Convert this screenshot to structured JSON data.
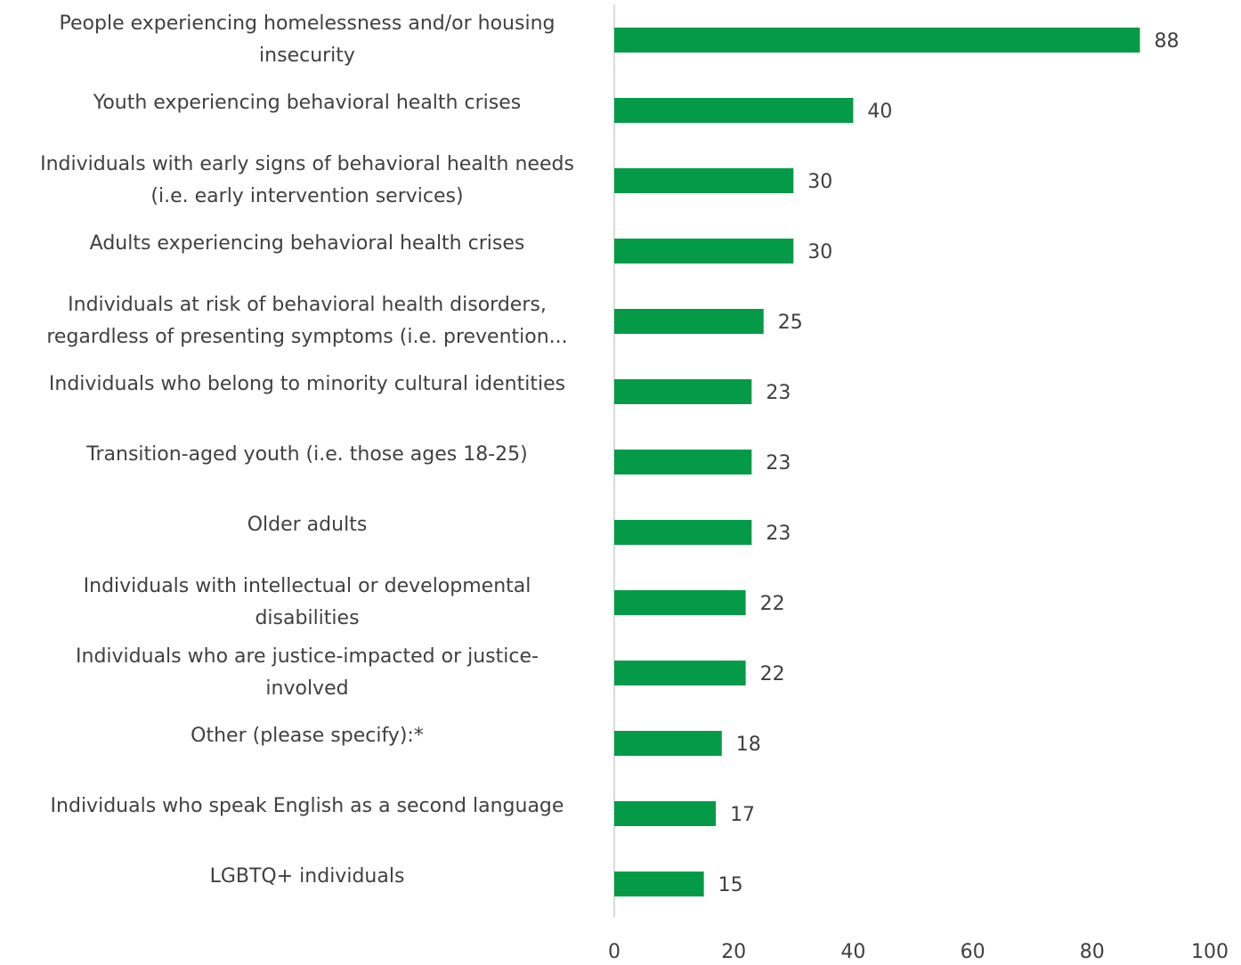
{
  "chart_data": {
    "type": "bar",
    "orientation": "horizontal",
    "categories": [
      [
        "People experiencing homelessness and/or housing",
        "insecurity"
      ],
      [
        "Youth experiencing behavioral health crises"
      ],
      [
        "Individuals with early signs of behavioral health needs",
        "(i.e. early intervention services)"
      ],
      [
        "Adults experiencing behavioral health crises"
      ],
      [
        "Individuals at risk of behavioral health disorders,",
        "regardless of presenting symptoms (i.e. prevention..."
      ],
      [
        "Individuals who belong to minority cultural identities"
      ],
      [
        "Transition-aged youth (i.e. those ages 18-25)"
      ],
      [
        "Older adults"
      ],
      [
        "Individuals with intellectual or developmental",
        "disabilities"
      ],
      [
        "Individuals who are justice-impacted or justice-",
        "involved"
      ],
      [
        "Other (please specify):*"
      ],
      [
        "Individuals who speak English as a second language"
      ],
      [
        "LGBTQ+ individuals"
      ]
    ],
    "values": [
      88,
      40,
      30,
      30,
      25,
      23,
      23,
      23,
      22,
      22,
      18,
      17,
      15
    ],
    "xlim": [
      0,
      100
    ],
    "xticks": [
      0,
      20,
      40,
      60,
      80,
      100
    ],
    "data_labels": true,
    "grid": false,
    "legend": "none",
    "bar_color": "#059a48",
    "axis_color": "#d9d9d9",
    "text_color": "#404040"
  }
}
